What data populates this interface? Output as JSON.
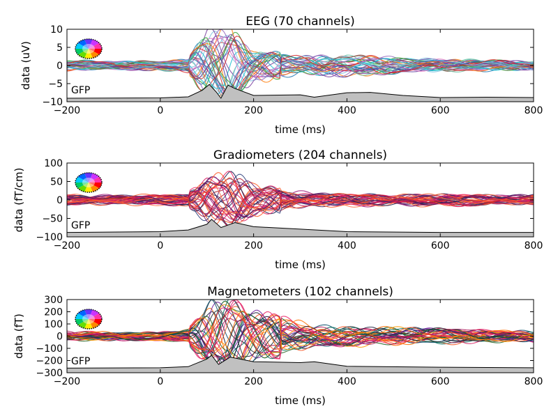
{
  "x_tick_labels": [
    "-200",
    "0",
    "200",
    "400",
    "600",
    "800"
  ],
  "chart_data": [
    {
      "type": "line",
      "title": "EEG (70 channels)",
      "xlabel": "time (ms)",
      "ylabel": "data (uV)",
      "xlim": [
        -200,
        800
      ],
      "ylim": [
        -10,
        10
      ],
      "y_ticks": [
        -10,
        -5,
        0,
        5,
        10
      ],
      "y_tick_labels": [
        "−10",
        "−5",
        "0",
        "5",
        "10"
      ],
      "gfp_label": "GFP",
      "n_channels": 70,
      "palette": [
        "#2ca02c",
        "#1f77b4",
        "#e377c2",
        "#ff7f0e",
        "#8c564b",
        "#9467bd",
        "#17becf",
        "#7b3fa0",
        "#5a3e9c",
        "#66c2a5",
        "#d62728",
        "#7fbfe0"
      ],
      "envelope": [
        {
          "x": -200,
          "amp": 1.5
        },
        {
          "x": -100,
          "amp": 1.5
        },
        {
          "x": 0,
          "amp": 1.5
        },
        {
          "x": 60,
          "amp": 2
        },
        {
          "x": 100,
          "amp": 9
        },
        {
          "x": 150,
          "amp": 10
        },
        {
          "x": 200,
          "amp": 4
        },
        {
          "x": 300,
          "amp": 3
        },
        {
          "x": 400,
          "amp": 3.5
        },
        {
          "x": 450,
          "amp": 3
        },
        {
          "x": 550,
          "amp": 2
        },
        {
          "x": 800,
          "amp": 1.5
        }
      ],
      "gfp": [
        {
          "x": -200,
          "y": 0.2
        },
        {
          "x": 0,
          "y": 0.3
        },
        {
          "x": 60,
          "y": 0.6
        },
        {
          "x": 90,
          "y": 2.5
        },
        {
          "x": 105,
          "y": 4.2
        },
        {
          "x": 120,
          "y": 2
        },
        {
          "x": 130,
          "y": 0.2
        },
        {
          "x": 145,
          "y": 4
        },
        {
          "x": 160,
          "y": 3
        },
        {
          "x": 200,
          "y": 1
        },
        {
          "x": 300,
          "y": 1.2
        },
        {
          "x": 330,
          "y": 0.5
        },
        {
          "x": 400,
          "y": 1.8
        },
        {
          "x": 450,
          "y": 1.9
        },
        {
          "x": 520,
          "y": 1
        },
        {
          "x": 600,
          "y": 0.4
        },
        {
          "x": 700,
          "y": 0.5
        },
        {
          "x": 800,
          "y": 0.4
        }
      ]
    },
    {
      "type": "line",
      "title": "Gradiometers (204 channels)",
      "xlabel": "time (ms)",
      "ylabel": "data (fT/cm)",
      "xlim": [
        -200,
        800
      ],
      "ylim": [
        -100,
        100
      ],
      "y_ticks": [
        -100,
        -50,
        0,
        50,
        100
      ],
      "y_tick_labels": [
        "−100",
        "−50",
        "0",
        "50",
        "100"
      ],
      "gfp_label": "GFP",
      "n_channels": 204,
      "palette": [
        "#1a1a4e",
        "#2c3e7a",
        "#6a1b6a",
        "#9c1a7a",
        "#c2185b",
        "#e91e63",
        "#ff5722",
        "#ff7043",
        "#b2182b",
        "#3f1f5f",
        "#d81b60",
        "#f4511e"
      ],
      "envelope": [
        {
          "x": -200,
          "amp": 15
        },
        {
          "x": -100,
          "amp": 15
        },
        {
          "x": 0,
          "amp": 15
        },
        {
          "x": 60,
          "amp": 20
        },
        {
          "x": 100,
          "amp": 55
        },
        {
          "x": 150,
          "amp": 75
        },
        {
          "x": 200,
          "amp": 40
        },
        {
          "x": 300,
          "amp": 25
        },
        {
          "x": 400,
          "amp": 18
        },
        {
          "x": 550,
          "amp": 18
        },
        {
          "x": 800,
          "amp": 15
        }
      ],
      "gfp": [
        {
          "x": -200,
          "y": 2
        },
        {
          "x": 0,
          "y": 3
        },
        {
          "x": 60,
          "y": 5
        },
        {
          "x": 100,
          "y": 12
        },
        {
          "x": 110,
          "y": 18
        },
        {
          "x": 130,
          "y": 8
        },
        {
          "x": 160,
          "y": 14
        },
        {
          "x": 200,
          "y": 9
        },
        {
          "x": 300,
          "y": 6
        },
        {
          "x": 400,
          "y": 3
        },
        {
          "x": 600,
          "y": 2
        },
        {
          "x": 800,
          "y": 2
        }
      ]
    },
    {
      "type": "line",
      "title": "Magnetometers (102 channels)",
      "xlabel": "time (ms)",
      "ylabel": "data (fT)",
      "xlim": [
        -200,
        800
      ],
      "ylim": [
        -300,
        300
      ],
      "y_ticks": [
        -300,
        -200,
        -100,
        0,
        100,
        200,
        300
      ],
      "y_tick_labels": [
        "−300",
        "−200",
        "−100",
        "0",
        "100",
        "200",
        "300"
      ],
      "gfp_label": "GFP",
      "n_channels": 102,
      "palette": [
        "#1b1b3a",
        "#0b4f6c",
        "#006d5b",
        "#1b5e20",
        "#6a1b9a",
        "#ad1457",
        "#e91e63",
        "#ff6f00",
        "#ff9800",
        "#d81b60",
        "#f4511e",
        "#263238"
      ],
      "envelope": [
        {
          "x": -200,
          "amp": 40
        },
        {
          "x": -100,
          "amp": 40
        },
        {
          "x": 0,
          "amp": 40
        },
        {
          "x": 60,
          "amp": 60
        },
        {
          "x": 110,
          "amp": 260
        },
        {
          "x": 150,
          "amp": 280
        },
        {
          "x": 200,
          "amp": 180
        },
        {
          "x": 280,
          "amp": 150
        },
        {
          "x": 350,
          "amp": 100
        },
        {
          "x": 450,
          "amp": 80
        },
        {
          "x": 600,
          "amp": 70
        },
        {
          "x": 800,
          "amp": 50
        }
      ],
      "gfp": [
        {
          "x": -200,
          "y": 10
        },
        {
          "x": 0,
          "y": 12
        },
        {
          "x": 60,
          "y": 18
        },
        {
          "x": 100,
          "y": 60
        },
        {
          "x": 110,
          "y": 80
        },
        {
          "x": 125,
          "y": 30
        },
        {
          "x": 150,
          "y": 70
        },
        {
          "x": 200,
          "y": 45
        },
        {
          "x": 300,
          "y": 40
        },
        {
          "x": 330,
          "y": 45
        },
        {
          "x": 400,
          "y": 20
        },
        {
          "x": 600,
          "y": 15
        },
        {
          "x": 800,
          "y": 12
        }
      ]
    }
  ]
}
